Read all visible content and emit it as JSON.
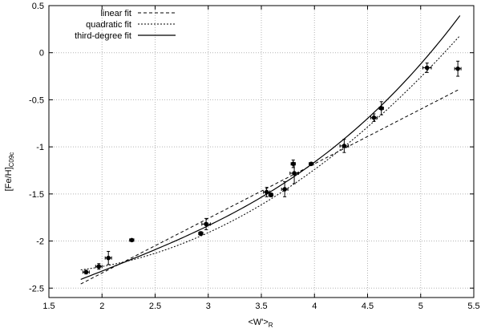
{
  "chart_data": {
    "type": "scatter",
    "title": "",
    "xlabel": {
      "main": "<W'>",
      "sub": "R"
    },
    "ylabel": {
      "main": "[Fe/H]",
      "sub": "C09c"
    },
    "xlim": [
      1.5,
      5.5
    ],
    "ylim": [
      -2.6,
      0.5
    ],
    "xticks": [
      1.5,
      2,
      2.5,
      3,
      3.5,
      4,
      4.5,
      5,
      5.5
    ],
    "xtick_labels": [
      "1.5",
      "2",
      "2.5",
      "3",
      "3.5",
      "4",
      "4.5",
      "5",
      "5.5"
    ],
    "yticks": [
      -2.5,
      -2,
      -1.5,
      -1,
      -0.5,
      0,
      0.5
    ],
    "ytick_labels": [
      "-2.5",
      "-2",
      "-1.5",
      "-1",
      "-0.5",
      "0",
      "0.5"
    ],
    "grid": true,
    "legend_position": "top-left",
    "points": [
      {
        "x": 1.85,
        "y": -2.33,
        "xerr": 0.03,
        "yerr": 0.02
      },
      {
        "x": 1.97,
        "y": -2.27,
        "xerr": 0.03,
        "yerr": 0.03
      },
      {
        "x": 2.06,
        "y": -2.18,
        "xerr": 0.03,
        "yerr": 0.07
      },
      {
        "x": 2.28,
        "y": -1.99,
        "xerr": 0.02,
        "yerr": 0.01
      },
      {
        "x": 2.93,
        "y": -1.92,
        "xerr": 0.02,
        "yerr": 0.02
      },
      {
        "x": 2.98,
        "y": -1.82,
        "xerr": 0.04,
        "yerr": 0.06
      },
      {
        "x": 3.55,
        "y": -1.48,
        "xerr": 0.03,
        "yerr": 0.05
      },
      {
        "x": 3.59,
        "y": -1.51,
        "xerr": 0.02,
        "yerr": 0.02
      },
      {
        "x": 3.72,
        "y": -1.45,
        "xerr": 0.03,
        "yerr": 0.08
      },
      {
        "x": 3.8,
        "y": -1.18,
        "xerr": 0.02,
        "yerr": 0.04
      },
      {
        "x": 3.81,
        "y": -1.28,
        "xerr": 0.04,
        "yerr": 0.11
      },
      {
        "x": 3.97,
        "y": -1.18,
        "xerr": 0.02,
        "yerr": 0.01
      },
      {
        "x": 4.28,
        "y": -0.99,
        "xerr": 0.04,
        "yerr": 0.07
      },
      {
        "x": 4.56,
        "y": -0.69,
        "xerr": 0.03,
        "yerr": 0.04
      },
      {
        "x": 4.63,
        "y": -0.59,
        "xerr": 0.02,
        "yerr": 0.07
      },
      {
        "x": 5.06,
        "y": -0.16,
        "xerr": 0.04,
        "yerr": 0.05
      },
      {
        "x": 5.35,
        "y": -0.17,
        "xerr": 0.03,
        "yerr": 0.08
      }
    ],
    "series": [
      {
        "name": "linear fit",
        "style": "long-dash",
        "x_range": [
          1.8,
          5.37
        ],
        "coefficients": [
          -3.5,
          0.58
        ]
      },
      {
        "name": "quadratic fit",
        "style": "short-dash",
        "x_range": [
          1.8,
          5.37
        ],
        "coefficients": [
          -2.06,
          -0.416,
          0.1552
        ]
      },
      {
        "name": "third-degree fit",
        "style": "solid",
        "x_range": [
          1.8,
          5.37
        ],
        "coefficients": [
          -3.405,
          0.759,
          -0.1664,
          0.0292
        ]
      }
    ],
    "colors": {
      "line": "#000000",
      "marker": "#000000",
      "grid": "#b4b4b4",
      "frame": "#000000"
    }
  }
}
